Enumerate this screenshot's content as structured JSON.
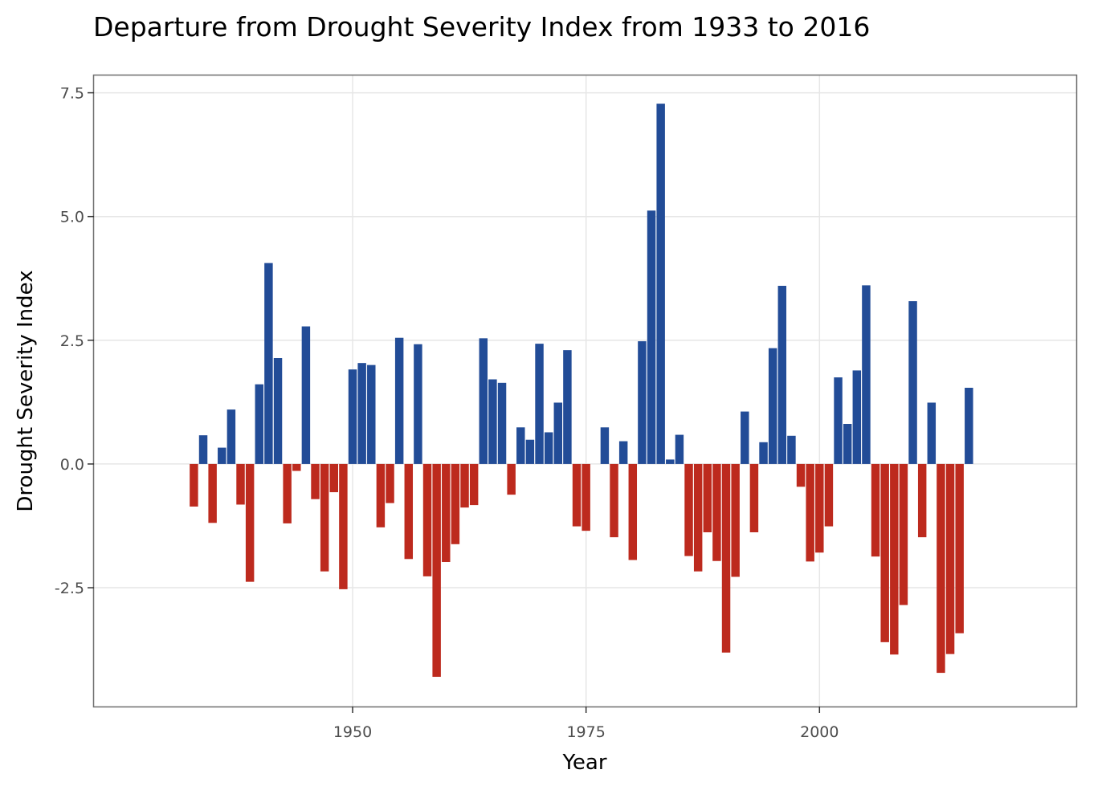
{
  "chart_data": {
    "type": "bar",
    "title": "Departure from Drought Severity Index from 1933 to 2016",
    "xlabel": "Year",
    "ylabel": "Drought Severity Index",
    "xlim": [
      1922.3,
      2027.5
    ],
    "ylim": [
      -4.9,
      7.85
    ],
    "xticks": [
      1950,
      1975,
      2000
    ],
    "xtick_labels": [
      "1950",
      "1975",
      "2000"
    ],
    "yticks": [
      -2.5,
      0,
      2.5,
      5,
      7.5
    ],
    "ytick_labels": [
      "-2.5",
      "0.0",
      "2.5",
      "5.0",
      "7.5"
    ],
    "grid": true,
    "legend": "none",
    "colors": {
      "positive": "#224c97",
      "negative": "#bd2a1e",
      "grid": "#e6e6e6",
      "frame": "#6e6e6e"
    },
    "x": [
      1933,
      1934,
      1935,
      1936,
      1937,
      1938,
      1939,
      1940,
      1941,
      1942,
      1943,
      1944,
      1945,
      1946,
      1947,
      1948,
      1949,
      1950,
      1951,
      1952,
      1953,
      1954,
      1955,
      1956,
      1957,
      1958,
      1959,
      1960,
      1961,
      1962,
      1963,
      1964,
      1965,
      1966,
      1967,
      1968,
      1969,
      1970,
      1971,
      1972,
      1973,
      1974,
      1975,
      1976,
      1977,
      1978,
      1979,
      1980,
      1981,
      1982,
      1983,
      1984,
      1985,
      1986,
      1987,
      1988,
      1989,
      1990,
      1991,
      1992,
      1993,
      1994,
      1995,
      1996,
      1997,
      1998,
      1999,
      2000,
      2001,
      2002,
      2003,
      2004,
      2005,
      2006,
      2007,
      2008,
      2009,
      2010,
      2011,
      2012,
      2013,
      2014,
      2015,
      2016
    ],
    "values": [
      -0.86,
      0.58,
      -1.19,
      0.33,
      1.1,
      -0.82,
      -2.38,
      1.61,
      4.06,
      2.14,
      -1.2,
      -0.14,
      2.78,
      -0.71,
      -2.17,
      -0.57,
      -2.53,
      1.91,
      2.04,
      2.0,
      -1.28,
      -0.79,
      2.55,
      -1.92,
      2.42,
      -2.27,
      -4.3,
      -1.98,
      -1.62,
      -0.88,
      -0.83,
      2.54,
      1.71,
      1.64,
      -0.62,
      0.74,
      0.49,
      2.43,
      0.64,
      1.24,
      2.3,
      -1.26,
      -1.35,
      0.0,
      0.74,
      -1.48,
      0.46,
      -1.94,
      2.48,
      5.12,
      7.28,
      0.09,
      0.59,
      -1.86,
      -2.17,
      -1.38,
      -1.96,
      -3.81,
      -2.28,
      1.06,
      -1.38,
      0.44,
      2.34,
      3.6,
      0.57,
      -0.46,
      -1.97,
      -1.79,
      -1.26,
      1.75,
      0.81,
      1.89,
      3.61,
      -1.87,
      -3.6,
      -3.85,
      -2.85,
      3.29,
      -1.48,
      1.24,
      -4.22,
      -3.84,
      -3.42,
      1.54
    ]
  }
}
